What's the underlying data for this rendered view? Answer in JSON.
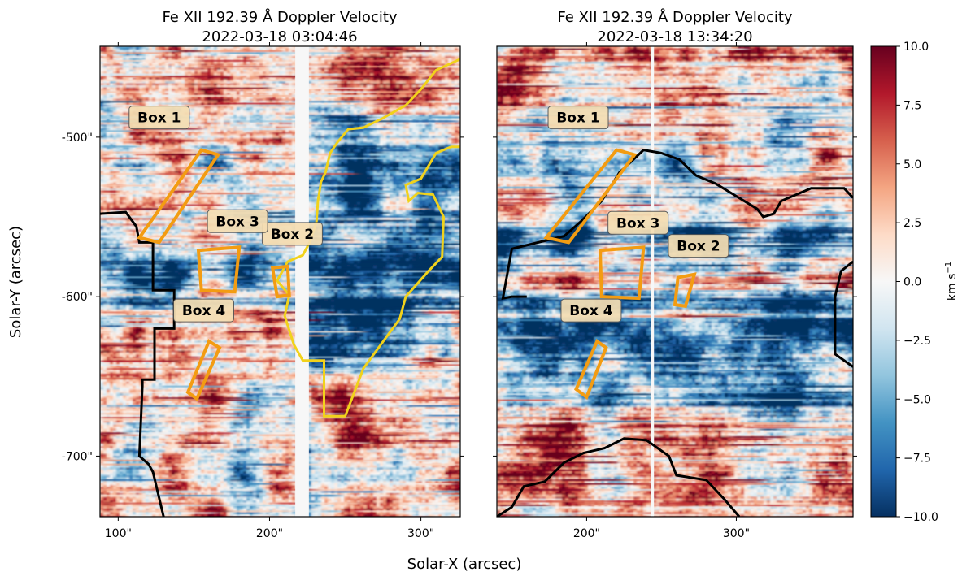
{
  "chart_data": [
    {
      "type": "heatmap",
      "title_line1": "Fe XII 192.39 Å Doppler Velocity",
      "title_line2": "2022-03-18 03:04:46",
      "x_ticks": [
        "100\"",
        "200\"",
        "300\""
      ],
      "y_ticks": [
        "-500\"",
        "-600\"",
        "-700\""
      ],
      "xlim": [
        88,
        326
      ],
      "ylim": [
        -738,
        -443
      ],
      "boxes": [
        {
          "label": "Box 1",
          "corners": [
            [
              114,
              -563
            ],
            [
              127,
              -566
            ],
            [
              166,
              -511
            ],
            [
              155,
              -508
            ]
          ]
        },
        {
          "label": "Box 2",
          "corners": [
            [
              202,
              -582
            ],
            [
              212,
              -581
            ],
            [
              213,
              -599
            ],
            [
              205,
              -600
            ]
          ]
        },
        {
          "label": "Box 3",
          "corners": [
            [
              153,
              -571
            ],
            [
              180,
              -569
            ],
            [
              177,
              -597
            ],
            [
              155,
              -596
            ]
          ]
        },
        {
          "label": "Box 4",
          "corners": [
            [
              146,
              -660
            ],
            [
              152,
              -664
            ],
            [
              167,
              -632
            ],
            [
              160,
              -628
            ]
          ]
        }
      ],
      "yellow_contour": true,
      "black_contour": true,
      "gap_column_x": [
        217,
        226
      ]
    },
    {
      "type": "heatmap",
      "title_line1": "Fe XII 192.39 Å Doppler Velocity",
      "title_line2": "2022-03-18 13:34:20",
      "x_ticks": [
        "200\"",
        "300\""
      ],
      "xlim": [
        140,
        378
      ],
      "ylim": [
        -738,
        -443
      ],
      "boxes": [
        {
          "label": "Box 1",
          "corners": [
            [
              173,
              -563
            ],
            [
              188,
              -566
            ],
            [
              232,
              -511
            ],
            [
              220,
              -508
            ]
          ]
        },
        {
          "label": "Box 2",
          "corners": [
            [
              261,
              -588
            ],
            [
              272,
              -586
            ],
            [
              266,
              -606
            ],
            [
              259,
              -605
            ]
          ]
        },
        {
          "label": "Box 3",
          "corners": [
            [
              209,
              -571
            ],
            [
              238,
              -569
            ],
            [
              235,
              -601
            ],
            [
              210,
              -600
            ]
          ]
        },
        {
          "label": "Box 4",
          "corners": [
            [
              193,
              -658
            ],
            [
              200,
              -663
            ],
            [
              213,
              -632
            ],
            [
              207,
              -628
            ]
          ]
        }
      ],
      "black_contour": true,
      "gap_column_x": [
        243,
        245
      ]
    }
  ],
  "axes": {
    "xlabel": "Solar-X (arcsec)",
    "ylabel": "Solar-Y (arcsec)"
  },
  "colorbar": {
    "label": "km s",
    "label_sup": "−1",
    "ticks": [
      "10.0",
      "7.5",
      "5.0",
      "2.5",
      "0.0",
      "−2.5",
      "−5.0",
      "−7.5",
      "−10.0"
    ],
    "range": [
      -10,
      10
    ],
    "colormap": "RdBu_r",
    "colors": [
      "#053061",
      "#2166ac",
      "#4393c3",
      "#92c5de",
      "#d1e5f0",
      "#f7f7f7",
      "#fddbc7",
      "#f4a582",
      "#d6604d",
      "#b2182b",
      "#67001f"
    ]
  },
  "colors": {
    "box": "#f39c12",
    "yellow": "#f1d21b",
    "contour": "#000000",
    "label_bg": "#f5deb3"
  }
}
